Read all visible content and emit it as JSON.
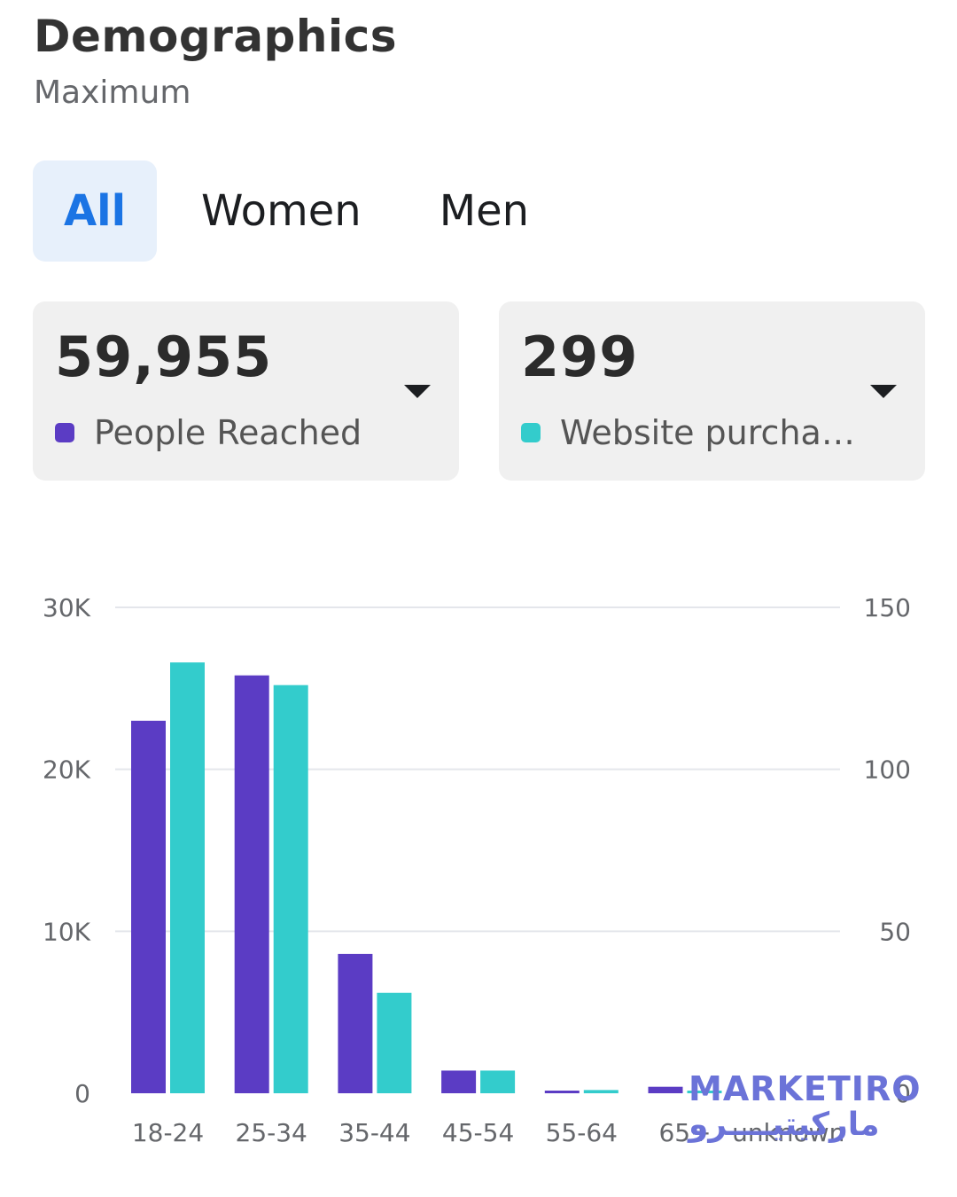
{
  "header": {
    "title": "Demographics",
    "subtitle": "Maximum"
  },
  "tabs": [
    {
      "label": "All",
      "active": true
    },
    {
      "label": "Women",
      "active": false
    },
    {
      "label": "Men",
      "active": false
    }
  ],
  "metrics": [
    {
      "value": "59,955",
      "label": "People Reached",
      "color": "#5b3cc4",
      "icon": "chevron-down-icon"
    },
    {
      "value": "299",
      "label": "Website purcha…",
      "color": "#33cccc",
      "icon": "chevron-down-icon"
    }
  ],
  "chart_data": {
    "type": "bar",
    "categories": [
      "18-24",
      "25-34",
      "35-44",
      "45-54",
      "55-64",
      "65+",
      "unknown"
    ],
    "series": [
      {
        "name": "People Reached",
        "axis": "left",
        "color": "#5b3cc4",
        "values": [
          23000,
          25800,
          8600,
          1400,
          150,
          400,
          0
        ]
      },
      {
        "name": "Website purcha…",
        "axis": "right",
        "color": "#33cccc",
        "values": [
          133,
          126,
          31,
          7,
          1,
          0,
          0
        ]
      }
    ],
    "y_left": {
      "ticks": [
        "0",
        "10K",
        "20K",
        "30K"
      ],
      "lim": [
        0,
        30000
      ]
    },
    "y_right": {
      "ticks": [
        "0",
        "50",
        "100",
        "150"
      ],
      "lim": [
        0,
        150
      ]
    },
    "grid": true
  },
  "watermark": {
    "latin": "MARKETIRO",
    "arabic": "ماركيتيــــرو"
  }
}
